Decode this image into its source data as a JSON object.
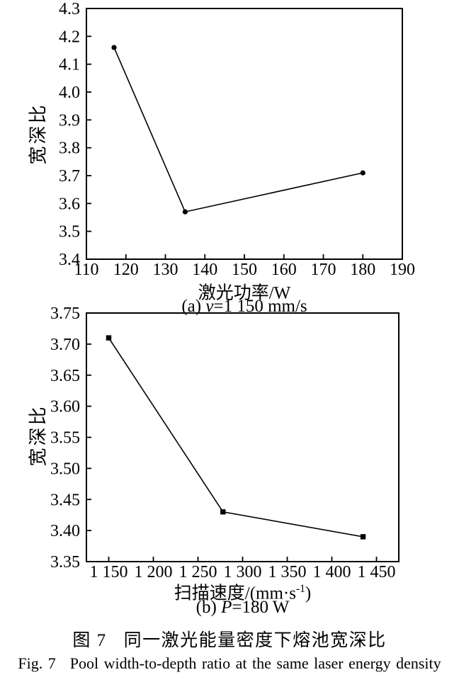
{
  "figure": {
    "caption_zh": {
      "label": "图 7",
      "text": "同一激光能量密度下熔池宽深比"
    },
    "caption_en": {
      "label": "Fig. 7",
      "text": "Pool width-to-depth ratio at the same laser energy density"
    }
  },
  "chart_data": [
    {
      "id": "a",
      "type": "line",
      "marker": "circle",
      "x": [
        117,
        135,
        180
      ],
      "y": [
        4.16,
        3.57,
        3.71
      ],
      "xlim": [
        110,
        190
      ],
      "ylim": [
        3.4,
        4.3
      ],
      "xlabel": "激光功率/W",
      "ylabel": "宽深比",
      "grid": false,
      "legend": "none",
      "line_color": "#000000",
      "xticks": [
        {
          "v": 110,
          "label": "110"
        },
        {
          "v": 120,
          "label": "120"
        },
        {
          "v": 130,
          "label": "130"
        },
        {
          "v": 140,
          "label": "140"
        },
        {
          "v": 150,
          "label": "150"
        },
        {
          "v": 160,
          "label": "160"
        },
        {
          "v": 170,
          "label": "170"
        },
        {
          "v": 180,
          "label": "180"
        },
        {
          "v": 190,
          "label": "190"
        }
      ],
      "yticks": [
        {
          "v": 4.3,
          "label": "4.3"
        },
        {
          "v": 4.2,
          "label": "4.2"
        },
        {
          "v": 4.1,
          "label": "4.1"
        },
        {
          "v": 4.0,
          "label": "4.0"
        },
        {
          "v": 3.9,
          "label": "3.9"
        },
        {
          "v": 3.8,
          "label": "3.8"
        },
        {
          "v": 3.7,
          "label": "3.7"
        },
        {
          "v": 3.6,
          "label": "3.6"
        },
        {
          "v": 3.5,
          "label": "3.5"
        },
        {
          "v": 3.4,
          "label": "3.4"
        }
      ],
      "xlabel_parts": {
        "pre": "激光功率/W",
        "sup": "",
        "post": ""
      },
      "caption": {
        "full": "(a) v=1 150 mm/s",
        "prefix": "(a) ",
        "symbol": "v",
        "rest": "=1 150 mm/s"
      }
    },
    {
      "id": "b",
      "type": "line",
      "marker": "square",
      "x": [
        1150,
        1278,
        1435
      ],
      "y": [
        3.71,
        3.43,
        3.39
      ],
      "xlim": [
        1125,
        1475
      ],
      "ylim": [
        3.35,
        3.75
      ],
      "xlabel": "扫描速度/(mm·s⁻¹)",
      "ylabel": "宽深比",
      "grid": false,
      "legend": "none",
      "line_color": "#000000",
      "xticks": [
        {
          "v": 1150,
          "label": "1 150"
        },
        {
          "v": 1200,
          "label": "1 200"
        },
        {
          "v": 1250,
          "label": "1 250"
        },
        {
          "v": 1300,
          "label": "1 300"
        },
        {
          "v": 1350,
          "label": "1 350"
        },
        {
          "v": 1400,
          "label": "1 400"
        },
        {
          "v": 1450,
          "label": "1 450"
        }
      ],
      "yticks": [
        {
          "v": 3.75,
          "label": "3.75"
        },
        {
          "v": 3.7,
          "label": "3.70"
        },
        {
          "v": 3.65,
          "label": "3.65"
        },
        {
          "v": 3.6,
          "label": "3.60"
        },
        {
          "v": 3.55,
          "label": "3.55"
        },
        {
          "v": 3.5,
          "label": "3.50"
        },
        {
          "v": 3.45,
          "label": "3.45"
        },
        {
          "v": 3.4,
          "label": "3.40"
        },
        {
          "v": 3.35,
          "label": "3.35"
        }
      ],
      "xlabel_parts": {
        "pre": "扫描速度/(mm·s",
        "sup": "-1",
        "post": ")"
      },
      "caption": {
        "full": "(b) P=180 W",
        "prefix": "(b) ",
        "symbol": "P",
        "rest": "=180 W"
      }
    }
  ]
}
